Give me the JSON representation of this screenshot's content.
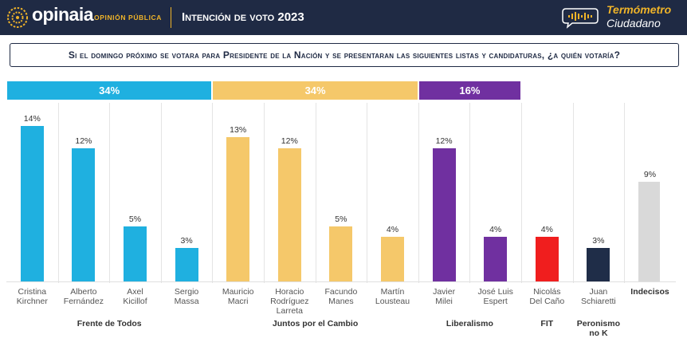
{
  "header": {
    "brand": "opinaia",
    "brand_sub": "OPINIÓN PÚBLICA",
    "title": "Intención de voto 2023",
    "termometro_line1": "Termómetro",
    "termometro_line2": "Ciudadano"
  },
  "question": "Si el domingo próximo se votara para Presidente de la Nación y se presentaran las siguientes listas y candidaturas, ¿a quién votaría?",
  "colors": {
    "header_bg": "#1f2a44",
    "accent": "#f0b429",
    "frente_de_todos": "#1fb0e0",
    "juntos_por_el_cambio": "#f5c86a",
    "liberalismo": "#7030a0",
    "fit": "#f01e1e",
    "peronismo_no_k": "#1f2d48",
    "indecisos": "#d9d9d9"
  },
  "chart_data": {
    "type": "bar",
    "ylim": [
      0,
      15
    ],
    "categories": [
      "Cristina Kirchner",
      "Alberto Fernández",
      "Axel Kicillof",
      "Sergio Massa",
      "Mauricio Macri",
      "Horacio Rodríguez Larreta",
      "Facundo Manes",
      "Martín Lousteau",
      "Javier Milei",
      "José Luis Espert",
      "Nicolás Del Caño",
      "Juan Schiaretti",
      "Indecisos"
    ],
    "bars": [
      {
        "name_lines": [
          "Cristina",
          "Kirchner"
        ],
        "value": 14,
        "label": "14%",
        "group": "frente_de_todos"
      },
      {
        "name_lines": [
          "Alberto",
          "Fernández"
        ],
        "value": 12,
        "label": "12%",
        "group": "frente_de_todos"
      },
      {
        "name_lines": [
          "Axel",
          "Kicillof"
        ],
        "value": 5,
        "label": "5%",
        "group": "frente_de_todos"
      },
      {
        "name_lines": [
          "Sergio",
          "Massa"
        ],
        "value": 3,
        "label": "3%",
        "group": "frente_de_todos"
      },
      {
        "name_lines": [
          "Mauricio",
          "Macri"
        ],
        "value": 13,
        "label": "13%",
        "group": "juntos_por_el_cambio"
      },
      {
        "name_lines": [
          "Horacio",
          "Rodríguez",
          "Larreta"
        ],
        "value": 12,
        "label": "12%",
        "group": "juntos_por_el_cambio"
      },
      {
        "name_lines": [
          "Facundo",
          "Manes"
        ],
        "value": 5,
        "label": "5%",
        "group": "juntos_por_el_cambio"
      },
      {
        "name_lines": [
          "Martín",
          "Lousteau"
        ],
        "value": 4,
        "label": "4%",
        "group": "juntos_por_el_cambio"
      },
      {
        "name_lines": [
          "Javier",
          "Milei"
        ],
        "value": 12,
        "label": "12%",
        "group": "liberalismo"
      },
      {
        "name_lines": [
          "José Luis",
          "Espert"
        ],
        "value": 4,
        "label": "4%",
        "group": "liberalismo"
      },
      {
        "name_lines": [
          "Nicolás",
          "Del Caño"
        ],
        "value": 4,
        "label": "4%",
        "group": "fit"
      },
      {
        "name_lines": [
          "Juan",
          "Schiaretti"
        ],
        "value": 3,
        "label": "3%",
        "group": "peronismo_no_k"
      },
      {
        "name_lines": [
          "Indecisos"
        ],
        "value": 9,
        "label": "9%",
        "group": "indecisos",
        "bold": true
      }
    ],
    "groups": [
      {
        "key": "frente_de_todos",
        "label": "Frente de Todos",
        "total": 34,
        "total_label": "34%"
      },
      {
        "key": "juntos_por_el_cambio",
        "label": "Juntos por el Cambio",
        "total": 34,
        "total_label": "34%"
      },
      {
        "key": "liberalismo",
        "label": "Liberalismo",
        "total": 16,
        "total_label": "16%"
      },
      {
        "key": "fit",
        "label": "FIT"
      },
      {
        "key": "peronismo_no_k",
        "label": "Peronismo no K"
      }
    ]
  }
}
